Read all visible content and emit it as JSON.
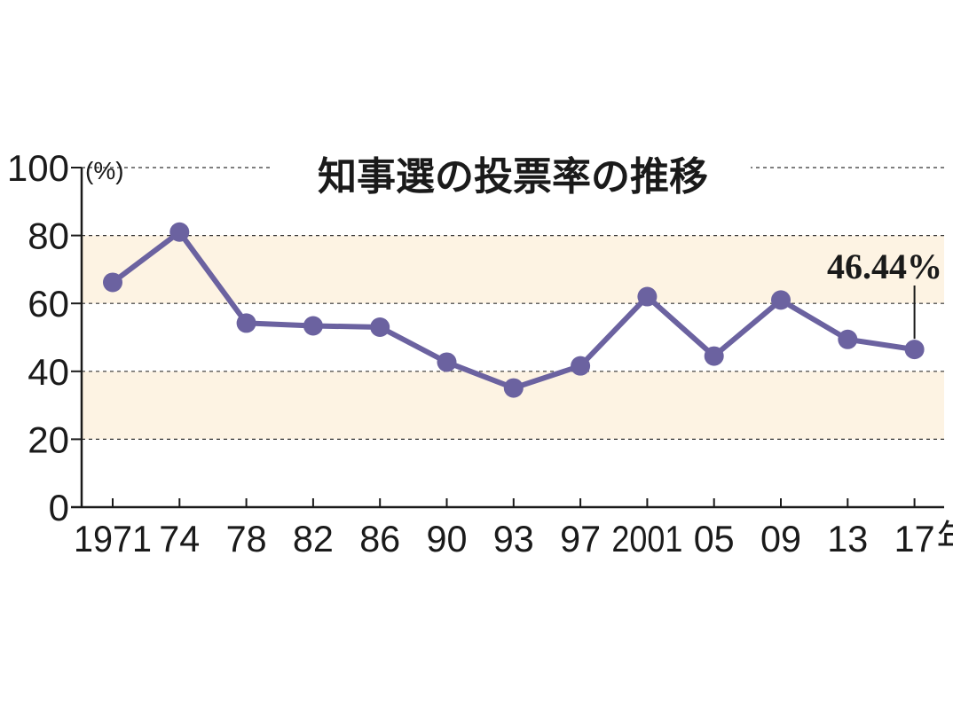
{
  "chart_data": {
    "type": "line",
    "title": "知事選の投票率の推移",
    "ylabel": "(%)",
    "x_unit": "年",
    "ylim": [
      0,
      100
    ],
    "yticks": [
      0,
      20,
      40,
      60,
      80,
      100
    ],
    "grid": true,
    "categories": [
      "1971",
      "74",
      "78",
      "82",
      "86",
      "90",
      "93",
      "97",
      "2001",
      "05",
      "09",
      "13",
      "17"
    ],
    "values": [
      66.2,
      81.0,
      54.2,
      53.4,
      53.0,
      42.7,
      35.1,
      41.6,
      62.0,
      44.5,
      61.0,
      49.4,
      46.44
    ],
    "annotation": {
      "text": "46.44%",
      "index": 12
    },
    "colors": {
      "line": "#6b62a0",
      "band": "#fdf3e3",
      "grid": "#333333",
      "text": "#1a1a1a"
    }
  }
}
